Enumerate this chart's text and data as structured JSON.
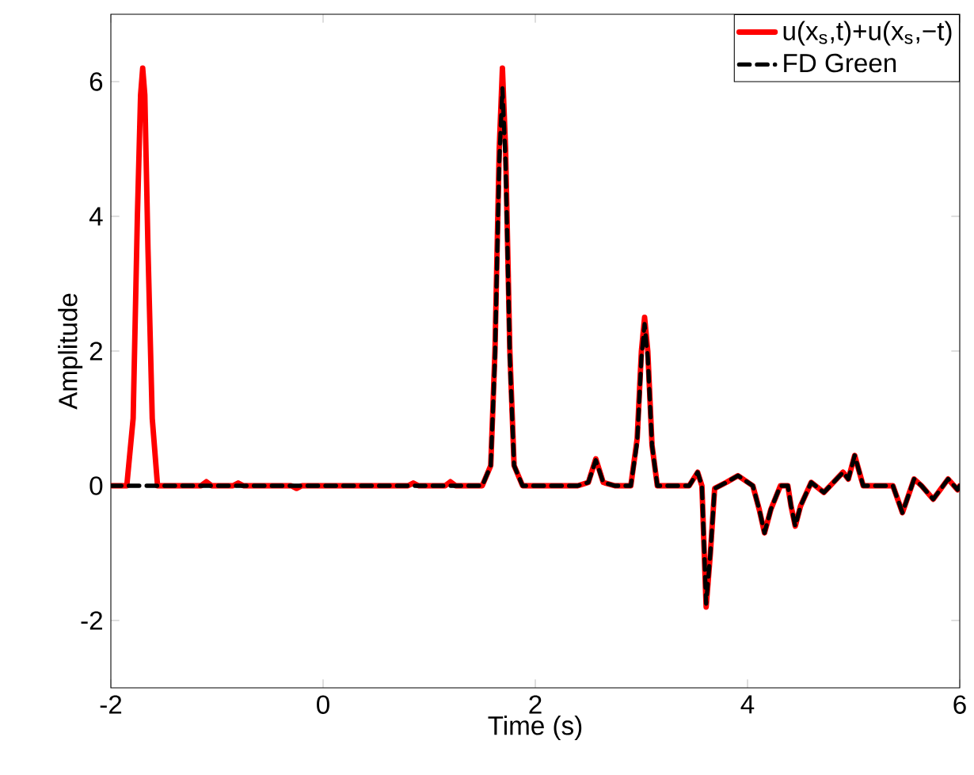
{
  "chart_data": {
    "type": "line",
    "xlabel": "Time (s)",
    "ylabel": "Amplitude",
    "xlim": [
      -2,
      6
    ],
    "ylim": [
      -3,
      7
    ],
    "xticks": [
      -2,
      0,
      2,
      4,
      6
    ],
    "yticks": [
      -2,
      0,
      2,
      4,
      6
    ],
    "grid": false,
    "legend": "top right",
    "marker": "none",
    "series": [
      {
        "name": "u(x$_{s}$,t)+u(x$_{s}$,−t)",
        "color": "#ff0000",
        "line_style": "solid",
        "x": [
          -2,
          -1.85,
          -1.79,
          -1.75,
          -1.72,
          -1.7,
          -1.68,
          -1.65,
          -1.61,
          -1.56,
          -1.4,
          -1.15,
          -1.1,
          -1.05,
          -0.85,
          -0.8,
          -0.75,
          -0.3,
          -0.25,
          -0.2,
          0.8,
          0.85,
          0.9,
          1.15,
          1.2,
          1.25,
          1.5,
          1.58,
          1.62,
          1.66,
          1.69,
          1.72,
          1.76,
          1.8,
          1.88,
          2.4,
          2.5,
          2.57,
          2.64,
          2.75,
          2.9,
          2.96,
          3.0,
          3.03,
          3.06,
          3.1,
          3.15,
          3.45,
          3.53,
          3.57,
          3.61,
          3.65,
          3.69,
          3.8,
          3.91,
          4.05,
          4.11,
          4.16,
          4.22,
          4.31,
          4.38,
          4.41,
          4.45,
          4.5,
          4.6,
          4.72,
          4.9,
          4.95,
          5.01,
          5.09,
          5.27,
          5.37,
          5.46,
          5.57,
          5.64,
          5.75,
          5.89,
          5.98,
          6
        ],
        "values": [
          0,
          0,
          1.0,
          4.0,
          5.8,
          6.2,
          5.8,
          3.5,
          1.0,
          0,
          0,
          0,
          0.06,
          0,
          0,
          0.04,
          0,
          0,
          -0.04,
          0,
          0,
          0.04,
          0,
          0,
          0.06,
          0,
          0,
          0.3,
          2.0,
          5.0,
          6.2,
          5.0,
          2.0,
          0.3,
          0,
          0,
          0.05,
          0.4,
          0.05,
          0,
          0,
          0.7,
          2.0,
          2.5,
          2.0,
          0.6,
          0,
          0,
          0.2,
          0,
          -1.8,
          -1.0,
          -0.04,
          0.05,
          0.15,
          0,
          -0.35,
          -0.7,
          -0.35,
          0,
          0,
          -0.3,
          -0.6,
          -0.3,
          0.05,
          -0.1,
          0.2,
          0.1,
          0.45,
          0,
          0,
          0,
          -0.4,
          0.1,
          0,
          -0.2,
          0.1,
          -0.06,
          0
        ]
      },
      {
        "name": "FD Green",
        "color": "#000000",
        "line_style": "dashed",
        "x": [
          -2,
          1.5,
          1.58,
          1.62,
          1.66,
          1.69,
          1.72,
          1.76,
          1.8,
          1.88,
          2.4,
          2.5,
          2.57,
          2.64,
          2.75,
          2.9,
          2.96,
          3.0,
          3.03,
          3.06,
          3.1,
          3.15,
          3.45,
          3.53,
          3.57,
          3.61,
          3.65,
          3.69,
          3.8,
          3.91,
          4.05,
          4.11,
          4.16,
          4.22,
          4.31,
          4.38,
          4.41,
          4.45,
          4.5,
          4.6,
          4.72,
          4.9,
          4.95,
          5.01,
          5.09,
          5.27,
          5.37,
          5.46,
          5.57,
          5.64,
          5.75,
          5.89,
          5.98,
          6
        ],
        "values": [
          0,
          0,
          0.3,
          1.9,
          4.8,
          5.9,
          4.8,
          1.9,
          0.3,
          0,
          0,
          0.05,
          0.38,
          0.05,
          0,
          0,
          0.65,
          1.9,
          2.4,
          1.9,
          0.6,
          0,
          0,
          0.2,
          0,
          -1.75,
          -1.0,
          -0.04,
          0.05,
          0.15,
          0,
          -0.35,
          -0.7,
          -0.35,
          0,
          0,
          -0.3,
          -0.6,
          -0.3,
          0.05,
          -0.1,
          0.2,
          0.1,
          0.45,
          0,
          0,
          0,
          -0.4,
          0.1,
          0,
          -0.2,
          0.1,
          -0.06,
          0
        ]
      }
    ]
  }
}
